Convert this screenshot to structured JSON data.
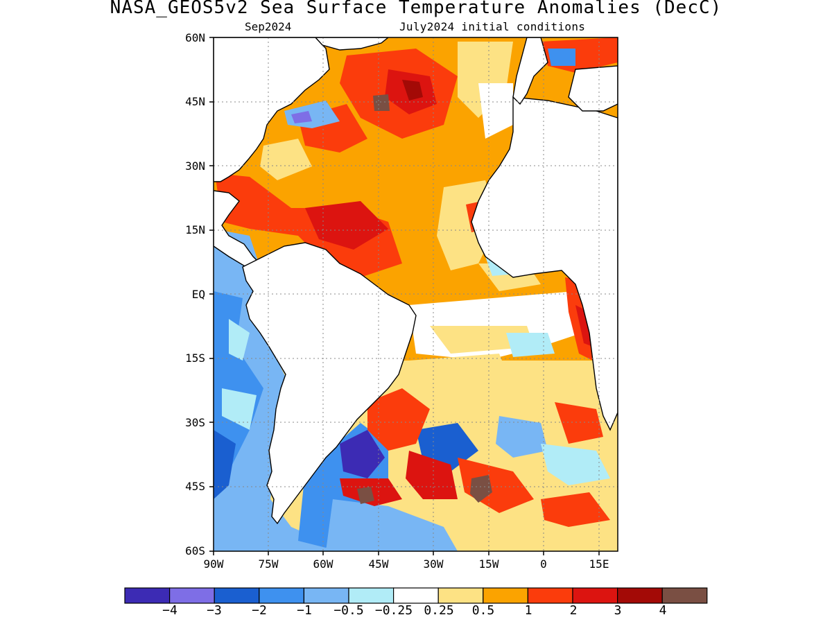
{
  "header": {
    "title": "NASA_GEOS5v2 Sea Surface Temperature Anomalies (DecC)",
    "forecast_month": "Sep2024",
    "initial_conditions": "July2024 initial conditions"
  },
  "map": {
    "lat_labels": [
      "60N",
      "45N",
      "30N",
      "15N",
      "EQ",
      "15S",
      "30S",
      "45S",
      "60S"
    ],
    "lat_values": [
      60,
      45,
      30,
      15,
      0,
      -15,
      -30,
      -45,
      -60
    ],
    "lon_labels": [
      "90W",
      "75W",
      "60W",
      "45W",
      "30W",
      "15W",
      "0",
      "15E"
    ],
    "lon_values": [
      -90,
      -75,
      -60,
      -45,
      -30,
      -15,
      0,
      15
    ],
    "lon_range": [
      -90,
      20
    ],
    "lat_range": [
      -60,
      60
    ],
    "grid": true
  },
  "colorbar": {
    "colors": [
      "#3c2bb4",
      "#7e6ee6",
      "#1a5fd0",
      "#3e91ef",
      "#78b6f4",
      "#b1ecf7",
      "#ffffff",
      "#fde284",
      "#fba300",
      "#fb3c0c",
      "#dc1410",
      "#a30a06",
      "#7a4f43"
    ],
    "labels": [
      "−4",
      "−3",
      "−2",
      "−1",
      "−0.5",
      "−0.25",
      "0.25",
      "0.5",
      "1",
      "2",
      "3",
      "4"
    ]
  },
  "legend_colors": {
    "land": "#ffffff",
    "coast": "#000000"
  }
}
